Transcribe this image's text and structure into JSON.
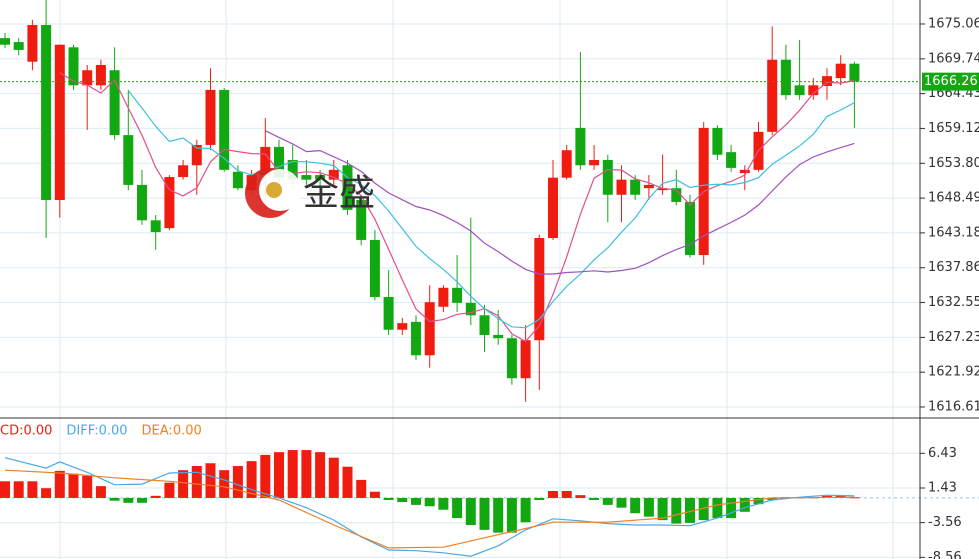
{
  "chart_data": [
    {
      "type": "candlestick",
      "open": [
        1672.9,
        1672.3,
        1669.3,
        1674.9,
        1648.2,
        1671.5,
        1665.7,
        1665.7,
        1668.0,
        1658.1,
        1650.5,
        1645.1,
        1643.9,
        1651.7,
        1653.5,
        1656.6,
        1665.0,
        1652.5,
        1649.7,
        1652.0,
        1656.3,
        1654.3,
        1652.0,
        1652.0,
        1651.3,
        1653.5,
        1648.2,
        1642.1,
        1633.4,
        1628.4,
        1629.6,
        1624.5,
        1631.9,
        1634.8,
        1632.5,
        1630.6,
        1627.6,
        1627.1,
        1621.0,
        1626.8,
        1642.4,
        1651.6,
        1659.2,
        1653.5,
        1654.3,
        1649.0,
        1651.3,
        1650.0,
        1649.7,
        1650.0,
        1647.9,
        1639.8,
        1659.2,
        1655.5,
        1652.3,
        1652.8,
        1658.6,
        1669.6,
        1665.7,
        1664.2,
        1665.6,
        1666.8,
        1669.0
      ],
      "high": [
        1673.7,
        1672.9,
        1675.7,
        1678.7,
        1671.9,
        1671.9,
        1668.8,
        1669.6,
        1671.5,
        1665.0,
        1652.8,
        1645.9,
        1652.0,
        1654.3,
        1657.4,
        1668.3,
        1665.3,
        1653.5,
        1652.8,
        1660.7,
        1657.4,
        1656.6,
        1654.3,
        1652.8,
        1654.3,
        1654.3,
        1649.0,
        1643.6,
        1637.5,
        1630.2,
        1630.6,
        1635.2,
        1635.2,
        1639.8,
        1645.5,
        1632.2,
        1631.4,
        1627.6,
        1629.1,
        1642.9,
        1654.3,
        1656.6,
        1670.8,
        1656.6,
        1655.1,
        1653.5,
        1652.0,
        1652.0,
        1655.1,
        1652.8,
        1649.0,
        1660.1,
        1659.6,
        1656.6,
        1653.5,
        1660.1,
        1674.7,
        1671.9,
        1672.6,
        1666.8,
        1668.3,
        1670.3,
        1669.3
      ],
      "low": [
        1671.4,
        1670.3,
        1668.0,
        1642.4,
        1645.5,
        1665.0,
        1658.9,
        1665.0,
        1657.4,
        1649.7,
        1644.4,
        1640.6,
        1643.6,
        1651.3,
        1649.0,
        1655.8,
        1652.5,
        1649.7,
        1649.0,
        1646.7,
        1650.5,
        1650.5,
        1650.5,
        1649.7,
        1650.5,
        1645.9,
        1641.3,
        1632.9,
        1627.6,
        1627.6,
        1623.8,
        1622.6,
        1631.1,
        1631.1,
        1629.1,
        1625.0,
        1626.1,
        1620.0,
        1617.4,
        1619.2,
        1642.1,
        1651.3,
        1652.8,
        1652.8,
        1644.8,
        1644.8,
        1648.2,
        1648.2,
        1649.0,
        1647.4,
        1639.4,
        1638.3,
        1654.3,
        1652.5,
        1649.7,
        1652.5,
        1658.1,
        1663.5,
        1663.5,
        1663.5,
        1663.5,
        1665.7,
        1659.2
      ],
      "close": [
        1671.9,
        1671.1,
        1674.9,
        1648.2,
        1671.9,
        1665.7,
        1668.0,
        1668.8,
        1658.1,
        1650.5,
        1645.1,
        1643.3,
        1651.7,
        1653.5,
        1656.6,
        1665.0,
        1652.8,
        1650.0,
        1652.0,
        1656.3,
        1651.6,
        1651.3,
        1651.3,
        1651.3,
        1652.8,
        1646.7,
        1642.1,
        1633.4,
        1628.4,
        1629.4,
        1624.5,
        1632.6,
        1634.8,
        1632.5,
        1630.6,
        1627.6,
        1627.1,
        1621.0,
        1626.8,
        1642.4,
        1651.6,
        1655.8,
        1653.5,
        1654.3,
        1649.0,
        1651.3,
        1649.0,
        1650.5,
        1650.0,
        1647.9,
        1639.8,
        1659.2,
        1655.1,
        1653.1,
        1652.8,
        1658.6,
        1669.6,
        1664.2,
        1664.2,
        1665.7,
        1667.1,
        1669.0,
        1666.26
      ],
      "up_color": "#f01c10",
      "down_color": "#12a812",
      "moving_averages": [
        {
          "period": 5,
          "color": "#e0508c"
        },
        {
          "period": 10,
          "color": "#3cc0e0"
        },
        {
          "period": 20,
          "color": "#a050c0"
        }
      ],
      "ylim": [
        1615.08,
        1678.72
      ],
      "yticks": [
        1675.06,
        1669.74,
        1664.43,
        1659.12,
        {
          "value": 1653.8,
          "label": "1653.80"
        },
        1648.49,
        1643.18,
        1637.86,
        1632.55,
        1627.23,
        1621.92,
        1616.61
      ],
      "last_price": 1666.26,
      "last_price_color": "#12a812",
      "grid": true,
      "watermark": "金盛"
    },
    {
      "type": "macd",
      "series": [
        {
          "name": "CD:0.00",
          "kind": "histogram",
          "color": "#f01c10",
          "down_color": "#12a812",
          "values": [
            2.4,
            2.4,
            2.4,
            1.4,
            3.9,
            3.5,
            3.2,
            1.7,
            -0.4,
            -0.7,
            -0.7,
            0.3,
            2.2,
            4.0,
            4.6,
            5.0,
            4.0,
            4.6,
            5.3,
            6.2,
            6.6,
            6.9,
            6.9,
            6.6,
            5.8,
            4.5,
            2.6,
            0.9,
            -0.3,
            -0.6,
            -1.0,
            -1.2,
            -1.7,
            -2.9,
            -3.9,
            -4.6,
            -5.0,
            -5.0,
            -3.5,
            -0.3,
            1.0,
            1.0,
            0.4,
            -0.3,
            -1.0,
            -1.4,
            -2.2,
            -2.7,
            -3.2,
            -3.7,
            -3.6,
            -3.2,
            -2.9,
            -2.9,
            -2.0,
            -0.9,
            -0.3,
            0.1,
            0.1,
            0.1,
            0.3,
            0.3,
            0.1
          ]
        },
        {
          "name": "DIFF:0.00",
          "kind": "line",
          "color": "#4aa8e8",
          "x": [
            0,
            3,
            4,
            6,
            8,
            10,
            12,
            14,
            16,
            18,
            20,
            22,
            24,
            26,
            28,
            30,
            32,
            34,
            36,
            38,
            40,
            42,
            44,
            46,
            48,
            50,
            52,
            54,
            56,
            58,
            60,
            62
          ],
          "values": [
            5.8,
            4.3,
            5.2,
            3.7,
            1.9,
            2.0,
            3.6,
            3.7,
            2.6,
            1.2,
            0,
            -1.4,
            -3.2,
            -5.6,
            -7.5,
            -7.6,
            -7.9,
            -8.4,
            -6.9,
            -4.6,
            -3.0,
            -3.3,
            -3.7,
            -3.9,
            -3.9,
            -4.0,
            -2.9,
            -1.4,
            -0.3,
            0.1,
            0.4,
            0.3
          ]
        },
        {
          "name": "DEA:0.00",
          "kind": "line",
          "color": "#f08020",
          "x": [
            0,
            4,
            8,
            12,
            16,
            20,
            24,
            28,
            32,
            36,
            40,
            44,
            48,
            52,
            56,
            62
          ],
          "values": [
            4.0,
            3.6,
            2.9,
            2.4,
            1.6,
            -0.3,
            -3.9,
            -7.2,
            -7.1,
            -5.3,
            -3.5,
            -3.5,
            -2.9,
            -1.0,
            0,
            0.1
          ]
        }
      ],
      "ylim": [
        -8.8,
        11.52
      ],
      "yticks": [
        6.43,
        1.43,
        -3.56,
        -8.56
      ],
      "grid": true
    }
  ]
}
